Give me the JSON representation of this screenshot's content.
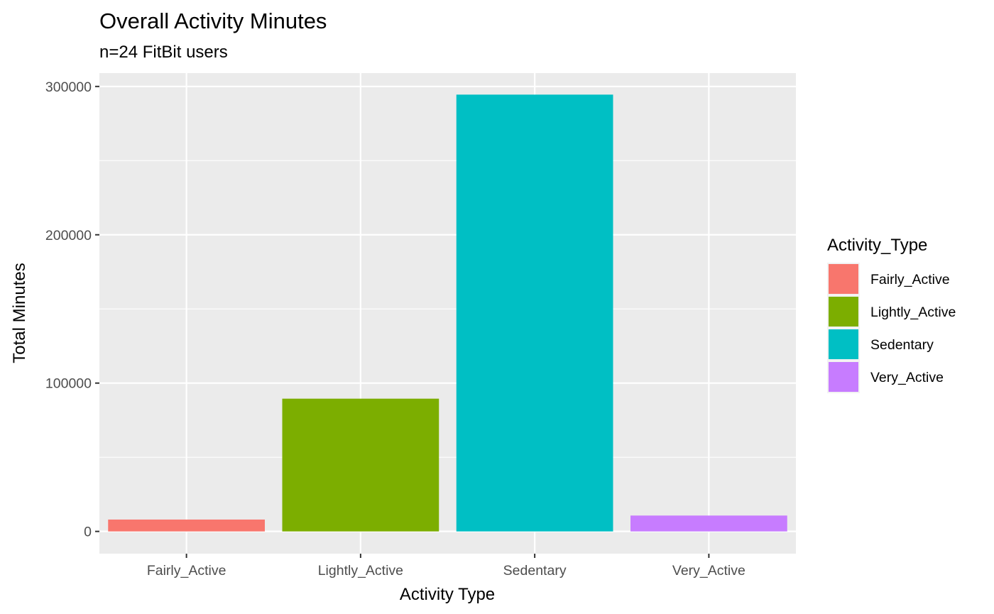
{
  "chart_data": {
    "type": "bar",
    "title": "Overall Activity Minutes",
    "subtitle": "n=24 FitBit users",
    "xlabel": "Activity Type",
    "ylabel": "Total Minutes",
    "categories": [
      "Fairly_Active",
      "Lightly_Active",
      "Sedentary",
      "Very_Active"
    ],
    "values": [
      8000,
      89500,
      294500,
      10700
    ],
    "colors": [
      "#F8766D",
      "#7CAE00",
      "#00BFC4",
      "#C77CFF"
    ],
    "ylim": [
      -15000,
      309000
    ],
    "yticks": [
      0,
      100000,
      200000,
      300000
    ],
    "ytick_labels": [
      "0",
      "100000",
      "200000",
      "300000"
    ],
    "grid": true,
    "panel_background": "#EBEBEB",
    "legend": {
      "title": "Activity_Type",
      "placement": "right",
      "entries": [
        "Fairly_Active",
        "Lightly_Active",
        "Sedentary",
        "Very_Active"
      ]
    }
  }
}
